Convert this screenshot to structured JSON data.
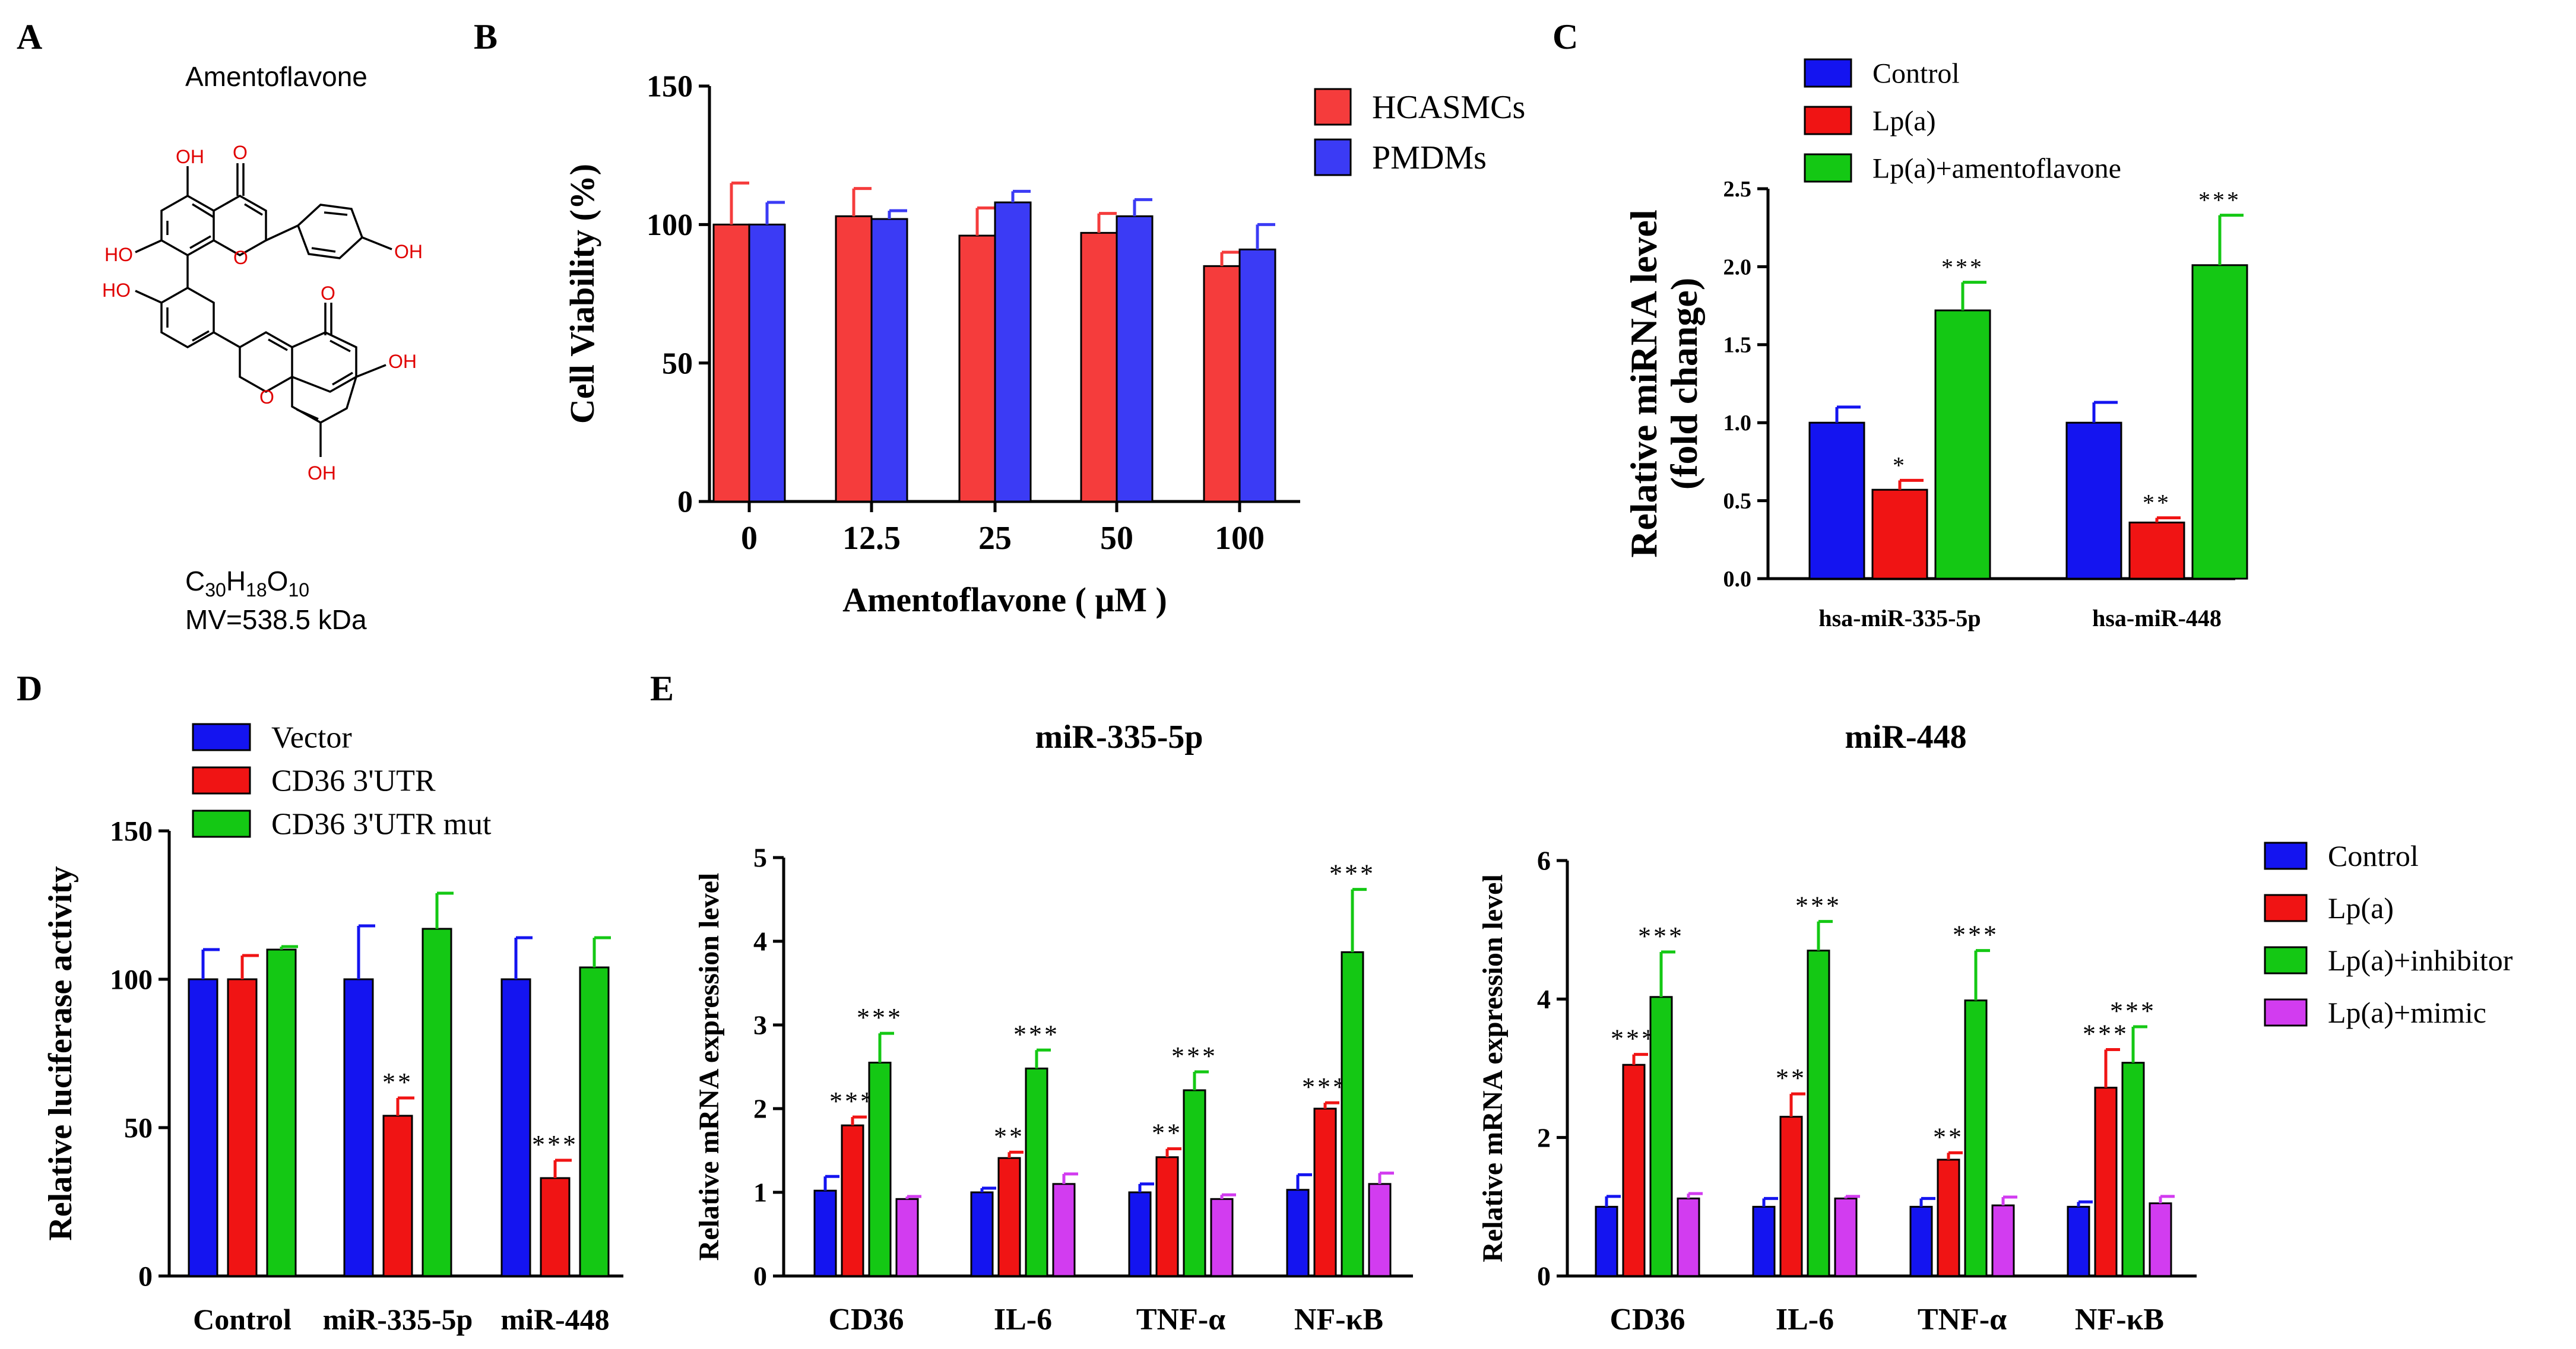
{
  "panels": {
    "A": {
      "letter": "A",
      "compound_name": "Amentoflavone",
      "formula": {
        "c": "C",
        "c_sub": "30",
        "h": "H",
        "h_sub": "18",
        "o": "O",
        "o_sub": "10"
      },
      "mv_label": "MV=538.5 kDa",
      "atom_o": "O",
      "atom_oh": "OH",
      "atom_ho": "HO"
    },
    "B": {
      "letter": "B"
    },
    "C": {
      "letter": "C"
    },
    "D": {
      "letter": "D"
    },
    "E": {
      "letter": "E"
    }
  },
  "colors": {
    "red": "#f53c3c",
    "blue": "#3b3bf5",
    "solid_blue": "#1414f0",
    "solid_red": "#f01414",
    "green": "#14c814",
    "magenta": "#d23cf0",
    "atom_red": "#e00000"
  },
  "chart_data": [
    {
      "panel": "B",
      "type": "bar",
      "title": "",
      "xlabel": "Amentoflavone ( μM )",
      "ylabel": "Cell Viability (%)",
      "ylim": [
        0,
        150
      ],
      "yticks": [
        "0",
        "50",
        "100",
        "150"
      ],
      "categories": [
        "0",
        "12.5",
        "25",
        "50",
        "100"
      ],
      "legend": "top-right",
      "series": [
        {
          "name": "HCASMCs",
          "color": "#f53c3c",
          "values": [
            100,
            103,
            96,
            97,
            85
          ],
          "errors": [
            15,
            10,
            10,
            7,
            5
          ]
        },
        {
          "name": "PMDMs",
          "color": "#3b3bf5",
          "values": [
            100,
            102,
            108,
            103,
            91
          ],
          "errors": [
            8,
            3,
            4,
            6,
            9
          ]
        }
      ]
    },
    {
      "panel": "C",
      "type": "bar",
      "title": "",
      "xlabel": "",
      "ylabel": "Relative miRNA level (fold change)",
      "ylabel_lines": [
        "Relative miRNA level",
        "(fold change)"
      ],
      "ylim": [
        0,
        2.5
      ],
      "yticks": [
        "0.0",
        "0.5",
        "1.0",
        "1.5",
        "2.0",
        "2.5"
      ],
      "categories": [
        "hsa-miR-335-5p",
        "hsa-miR-448"
      ],
      "legend": "top-left",
      "series": [
        {
          "name": "Control",
          "color": "#1414f0",
          "values": [
            1.0,
            1.0
          ],
          "errors": [
            0.1,
            0.13
          ],
          "sig": [
            "",
            ""
          ]
        },
        {
          "name": "Lp(a)",
          "color": "#f01414",
          "values": [
            0.57,
            0.36
          ],
          "errors": [
            0.06,
            0.03
          ],
          "sig": [
            "*",
            "**"
          ]
        },
        {
          "name": "Lp(a)+amentoflavone",
          "color": "#14c814",
          "values": [
            1.72,
            2.01
          ],
          "errors": [
            0.18,
            0.32
          ],
          "sig": [
            "***",
            "***"
          ]
        }
      ]
    },
    {
      "panel": "D",
      "type": "bar",
      "title": "",
      "xlabel": "",
      "ylabel": "Relative luciferase activity",
      "ylim": [
        0,
        150
      ],
      "yticks": [
        "0",
        "50",
        "100",
        "150"
      ],
      "categories": [
        "Control",
        "miR-335-5p",
        "miR-448"
      ],
      "legend": "top-left",
      "series": [
        {
          "name": "Vector",
          "color": "#1414f0",
          "values": [
            100,
            100,
            100
          ],
          "errors": [
            10,
            18,
            14
          ],
          "sig": [
            "",
            "",
            ""
          ]
        },
        {
          "name": "CD36 3'UTR",
          "color": "#f01414",
          "values": [
            100,
            54,
            33
          ],
          "errors": [
            8,
            6,
            6
          ],
          "sig": [
            "",
            "**",
            "***"
          ]
        },
        {
          "name": "CD36 3'UTR mut",
          "color": "#14c814",
          "values": [
            110,
            117,
            104
          ],
          "errors": [
            1,
            12,
            10
          ],
          "sig": [
            "",
            "",
            ""
          ]
        }
      ]
    },
    {
      "panel": "E",
      "type": "bar",
      "title": "miR-335-5p",
      "xlabel": "",
      "ylabel": "Relative mRNA expression level",
      "ylim": [
        0,
        5
      ],
      "yticks": [
        "0",
        "1",
        "2",
        "3",
        "4",
        "5"
      ],
      "categories": [
        "CD36",
        "IL-6",
        "TNF-α",
        "NF-κB"
      ],
      "series": [
        {
          "name": "Control",
          "color": "#1414f0",
          "values": [
            1.02,
            1.0,
            1.0,
            1.03
          ],
          "errors": [
            0.17,
            0.05,
            0.1,
            0.18
          ],
          "sig": [
            "",
            "",
            "",
            ""
          ]
        },
        {
          "name": "Lp(a)",
          "color": "#f01414",
          "values": [
            1.8,
            1.41,
            1.42,
            2.0
          ],
          "errors": [
            0.1,
            0.07,
            0.1,
            0.07
          ],
          "sig": [
            "***",
            "**",
            "**",
            "***"
          ]
        },
        {
          "name": "Lp(a)+inhibitor",
          "color": "#14c814",
          "values": [
            2.55,
            2.48,
            2.22,
            3.87
          ],
          "errors": [
            0.35,
            0.22,
            0.22,
            0.75
          ],
          "sig": [
            "***",
            "***",
            "***",
            "***"
          ]
        },
        {
          "name": "Lp(a)+mimic",
          "color": "#d23cf0",
          "values": [
            0.92,
            1.1,
            0.92,
            1.1
          ],
          "errors": [
            0.03,
            0.12,
            0.05,
            0.13
          ],
          "sig": [
            "",
            "",
            "",
            ""
          ]
        }
      ]
    },
    {
      "panel": "E",
      "type": "bar",
      "title": "miR-448",
      "xlabel": "",
      "ylabel": "Relative mRNA expression level",
      "ylim": [
        0,
        6
      ],
      "yticks": [
        "0",
        "2",
        "4",
        "6"
      ],
      "categories": [
        "CD36",
        "IL-6",
        "TNF-α",
        "NF-κB"
      ],
      "legend": "right",
      "series": [
        {
          "name": "Control",
          "color": "#1414f0",
          "values": [
            1.0,
            1.0,
            1.0,
            1.0
          ],
          "errors": [
            0.15,
            0.12,
            0.12,
            0.07
          ],
          "sig": [
            "",
            "",
            "",
            ""
          ]
        },
        {
          "name": "Lp(a)",
          "color": "#f01414",
          "values": [
            3.05,
            2.3,
            1.68,
            2.72
          ],
          "errors": [
            0.15,
            0.33,
            0.1,
            0.55
          ],
          "sig": [
            "***",
            "**",
            "**",
            "***"
          ]
        },
        {
          "name": "Lp(a)+inhibitor",
          "color": "#14c814",
          "values": [
            4.03,
            4.7,
            3.98,
            3.08
          ],
          "errors": [
            0.65,
            0.42,
            0.72,
            0.52
          ],
          "sig": [
            "***",
            "***",
            "***",
            "***"
          ]
        },
        {
          "name": "Lp(a)+mimic",
          "color": "#d23cf0",
          "values": [
            1.12,
            1.12,
            1.02,
            1.05
          ],
          "errors": [
            0.07,
            0.03,
            0.12,
            0.1
          ],
          "sig": [
            "",
            "",
            "",
            ""
          ]
        }
      ]
    }
  ]
}
